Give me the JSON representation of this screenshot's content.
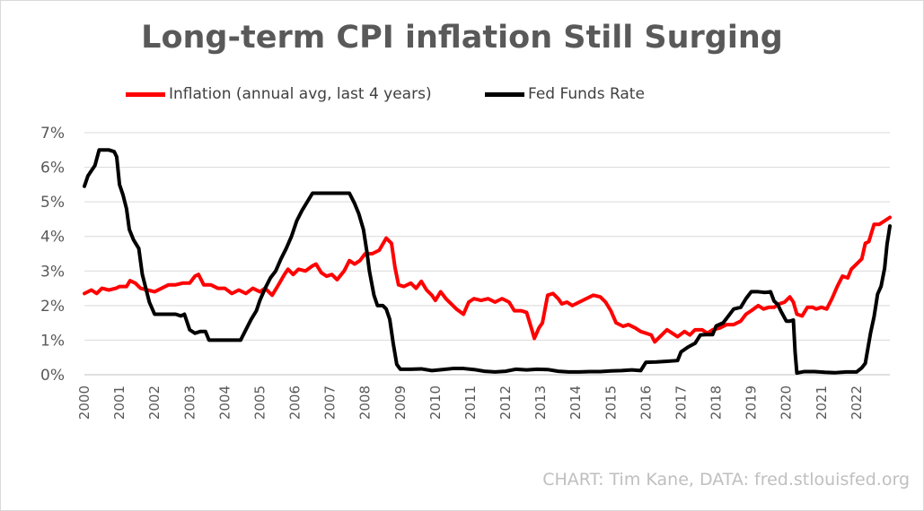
{
  "chart_data": {
    "type": "line",
    "title": "Long-term CPI inflation Still Surging",
    "credit": "CHART: Tim Kane, DATA: fred.stlouisfed.org",
    "legend_position": "top",
    "grid": true,
    "xlim": [
      2000,
      2022.95
    ],
    "ylim": [
      0,
      7
    ],
    "y_unit": "%",
    "x_ticks": [
      "2000",
      "2001",
      "2002",
      "2003",
      "2004",
      "2005",
      "2006",
      "2007",
      "2008",
      "2009",
      "2010",
      "2011",
      "2012",
      "2013",
      "2014",
      "2015",
      "2016",
      "2017",
      "2018",
      "2019",
      "2020",
      "2021",
      "2022"
    ],
    "y_ticks": [
      "0%",
      "1%",
      "2%",
      "3%",
      "4%",
      "5%",
      "6%",
      "7%"
    ],
    "series": [
      {
        "name": "Inflation (annual avg, last 4 years)",
        "color": "#ff0000",
        "points": [
          [
            2000.0,
            2.35
          ],
          [
            2000.2,
            2.45
          ],
          [
            2000.35,
            2.35
          ],
          [
            2000.5,
            2.5
          ],
          [
            2000.7,
            2.45
          ],
          [
            2000.9,
            2.5
          ],
          [
            2001.0,
            2.55
          ],
          [
            2001.2,
            2.55
          ],
          [
            2001.3,
            2.72
          ],
          [
            2001.45,
            2.65
          ],
          [
            2001.6,
            2.5
          ],
          [
            2001.8,
            2.45
          ],
          [
            2002.0,
            2.4
          ],
          [
            2002.2,
            2.5
          ],
          [
            2002.4,
            2.6
          ],
          [
            2002.6,
            2.6
          ],
          [
            2002.8,
            2.65
          ],
          [
            2003.0,
            2.65
          ],
          [
            2003.15,
            2.85
          ],
          [
            2003.25,
            2.9
          ],
          [
            2003.4,
            2.6
          ],
          [
            2003.6,
            2.6
          ],
          [
            2003.8,
            2.5
          ],
          [
            2004.0,
            2.5
          ],
          [
            2004.2,
            2.35
          ],
          [
            2004.4,
            2.45
          ],
          [
            2004.6,
            2.35
          ],
          [
            2004.8,
            2.5
          ],
          [
            2005.0,
            2.4
          ],
          [
            2005.15,
            2.5
          ],
          [
            2005.35,
            2.3
          ],
          [
            2005.5,
            2.55
          ],
          [
            2005.7,
            2.9
          ],
          [
            2005.8,
            3.05
          ],
          [
            2005.95,
            2.9
          ],
          [
            2006.1,
            3.05
          ],
          [
            2006.3,
            3.0
          ],
          [
            2006.5,
            3.15
          ],
          [
            2006.6,
            3.2
          ],
          [
            2006.75,
            2.95
          ],
          [
            2006.9,
            2.85
          ],
          [
            2007.05,
            2.9
          ],
          [
            2007.2,
            2.75
          ],
          [
            2007.4,
            3.0
          ],
          [
            2007.55,
            3.3
          ],
          [
            2007.7,
            3.2
          ],
          [
            2007.85,
            3.3
          ],
          [
            2008.0,
            3.5
          ],
          [
            2008.2,
            3.5
          ],
          [
            2008.4,
            3.6
          ],
          [
            2008.6,
            3.95
          ],
          [
            2008.75,
            3.8
          ],
          [
            2008.85,
            3.1
          ],
          [
            2008.95,
            2.6
          ],
          [
            2009.1,
            2.55
          ],
          [
            2009.3,
            2.65
          ],
          [
            2009.45,
            2.5
          ],
          [
            2009.6,
            2.7
          ],
          [
            2009.75,
            2.45
          ],
          [
            2009.9,
            2.3
          ],
          [
            2010.0,
            2.15
          ],
          [
            2010.15,
            2.4
          ],
          [
            2010.3,
            2.2
          ],
          [
            2010.45,
            2.05
          ],
          [
            2010.6,
            1.9
          ],
          [
            2010.8,
            1.75
          ],
          [
            2010.95,
            2.1
          ],
          [
            2011.1,
            2.2
          ],
          [
            2011.3,
            2.15
          ],
          [
            2011.5,
            2.2
          ],
          [
            2011.7,
            2.1
          ],
          [
            2011.9,
            2.2
          ],
          [
            2012.1,
            2.1
          ],
          [
            2012.25,
            1.85
          ],
          [
            2012.45,
            1.85
          ],
          [
            2012.6,
            1.8
          ],
          [
            2012.75,
            1.3
          ],
          [
            2012.82,
            1.05
          ],
          [
            2012.95,
            1.35
          ],
          [
            2013.05,
            1.5
          ],
          [
            2013.2,
            2.3
          ],
          [
            2013.35,
            2.35
          ],
          [
            2013.5,
            2.2
          ],
          [
            2013.6,
            2.05
          ],
          [
            2013.75,
            2.1
          ],
          [
            2013.9,
            2.0
          ],
          [
            2014.1,
            2.1
          ],
          [
            2014.3,
            2.2
          ],
          [
            2014.5,
            2.3
          ],
          [
            2014.7,
            2.25
          ],
          [
            2014.85,
            2.1
          ],
          [
            2015.0,
            1.85
          ],
          [
            2015.15,
            1.5
          ],
          [
            2015.35,
            1.4
          ],
          [
            2015.5,
            1.45
          ],
          [
            2015.7,
            1.35
          ],
          [
            2015.85,
            1.25
          ],
          [
            2016.0,
            1.2
          ],
          [
            2016.15,
            1.15
          ],
          [
            2016.25,
            0.95
          ],
          [
            2016.4,
            1.1
          ],
          [
            2016.6,
            1.3
          ],
          [
            2016.75,
            1.2
          ],
          [
            2016.9,
            1.1
          ],
          [
            2017.1,
            1.25
          ],
          [
            2017.25,
            1.15
          ],
          [
            2017.4,
            1.3
          ],
          [
            2017.6,
            1.3
          ],
          [
            2017.75,
            1.2
          ],
          [
            2017.9,
            1.3
          ],
          [
            2018.1,
            1.35
          ],
          [
            2018.3,
            1.45
          ],
          [
            2018.5,
            1.45
          ],
          [
            2018.7,
            1.55
          ],
          [
            2018.85,
            1.75
          ],
          [
            2019.0,
            1.85
          ],
          [
            2019.2,
            2.0
          ],
          [
            2019.35,
            1.9
          ],
          [
            2019.5,
            1.95
          ],
          [
            2019.65,
            1.95
          ],
          [
            2019.8,
            2.05
          ],
          [
            2019.95,
            2.1
          ],
          [
            2020.1,
            2.25
          ],
          [
            2020.2,
            2.1
          ],
          [
            2020.3,
            1.75
          ],
          [
            2020.45,
            1.7
          ],
          [
            2020.6,
            1.95
          ],
          [
            2020.75,
            1.95
          ],
          [
            2020.85,
            1.9
          ],
          [
            2021.0,
            1.95
          ],
          [
            2021.15,
            1.9
          ],
          [
            2021.3,
            2.2
          ],
          [
            2021.45,
            2.55
          ],
          [
            2021.6,
            2.85
          ],
          [
            2021.75,
            2.8
          ],
          [
            2021.85,
            3.05
          ],
          [
            2022.0,
            3.2
          ],
          [
            2022.15,
            3.35
          ],
          [
            2022.25,
            3.8
          ],
          [
            2022.35,
            3.85
          ],
          [
            2022.5,
            4.35
          ],
          [
            2022.65,
            4.35
          ],
          [
            2022.8,
            4.45
          ],
          [
            2022.95,
            4.55
          ]
        ]
      },
      {
        "name": "Fed Funds Rate",
        "color": "#000000",
        "points": [
          [
            2000.0,
            5.45
          ],
          [
            2000.1,
            5.75
          ],
          [
            2000.2,
            5.9
          ],
          [
            2000.3,
            6.05
          ],
          [
            2000.42,
            6.5
          ],
          [
            2000.55,
            6.5
          ],
          [
            2000.7,
            6.5
          ],
          [
            2000.85,
            6.45
          ],
          [
            2000.92,
            6.3
          ],
          [
            2001.0,
            5.5
          ],
          [
            2001.1,
            5.2
          ],
          [
            2001.2,
            4.8
          ],
          [
            2001.28,
            4.2
          ],
          [
            2001.4,
            3.9
          ],
          [
            2001.55,
            3.65
          ],
          [
            2001.65,
            2.9
          ],
          [
            2001.75,
            2.5
          ],
          [
            2001.85,
            2.1
          ],
          [
            2002.0,
            1.75
          ],
          [
            2002.3,
            1.75
          ],
          [
            2002.6,
            1.75
          ],
          [
            2002.75,
            1.7
          ],
          [
            2002.85,
            1.75
          ],
          [
            2003.0,
            1.3
          ],
          [
            2003.15,
            1.2
          ],
          [
            2003.3,
            1.25
          ],
          [
            2003.45,
            1.25
          ],
          [
            2003.55,
            1.0
          ],
          [
            2003.7,
            1.0
          ],
          [
            2003.9,
            1.0
          ],
          [
            2004.2,
            1.0
          ],
          [
            2004.45,
            1.0
          ],
          [
            2004.6,
            1.3
          ],
          [
            2004.75,
            1.6
          ],
          [
            2004.9,
            1.85
          ],
          [
            2005.0,
            2.15
          ],
          [
            2005.15,
            2.5
          ],
          [
            2005.3,
            2.8
          ],
          [
            2005.45,
            3.0
          ],
          [
            2005.6,
            3.35
          ],
          [
            2005.75,
            3.65
          ],
          [
            2005.9,
            4.0
          ],
          [
            2006.05,
            4.45
          ],
          [
            2006.2,
            4.75
          ],
          [
            2006.35,
            5.0
          ],
          [
            2006.5,
            5.25
          ],
          [
            2006.7,
            5.25
          ],
          [
            2006.9,
            5.25
          ],
          [
            2007.1,
            5.25
          ],
          [
            2007.35,
            5.25
          ],
          [
            2007.55,
            5.25
          ],
          [
            2007.7,
            4.95
          ],
          [
            2007.82,
            4.65
          ],
          [
            2007.95,
            4.2
          ],
          [
            2008.05,
            3.55
          ],
          [
            2008.12,
            3.0
          ],
          [
            2008.25,
            2.3
          ],
          [
            2008.35,
            2.0
          ],
          [
            2008.5,
            2.0
          ],
          [
            2008.6,
            1.9
          ],
          [
            2008.7,
            1.6
          ],
          [
            2008.8,
            0.9
          ],
          [
            2008.9,
            0.3
          ],
          [
            2009.0,
            0.16
          ],
          [
            2009.3,
            0.16
          ],
          [
            2009.6,
            0.17
          ],
          [
            2009.9,
            0.12
          ],
          [
            2010.2,
            0.15
          ],
          [
            2010.5,
            0.18
          ],
          [
            2010.8,
            0.18
          ],
          [
            2011.1,
            0.15
          ],
          [
            2011.4,
            0.1
          ],
          [
            2011.7,
            0.08
          ],
          [
            2012.0,
            0.1
          ],
          [
            2012.3,
            0.16
          ],
          [
            2012.6,
            0.14
          ],
          [
            2012.9,
            0.16
          ],
          [
            2013.2,
            0.15
          ],
          [
            2013.5,
            0.1
          ],
          [
            2013.8,
            0.08
          ],
          [
            2014.1,
            0.08
          ],
          [
            2014.4,
            0.09
          ],
          [
            2014.7,
            0.09
          ],
          [
            2015.0,
            0.11
          ],
          [
            2015.3,
            0.12
          ],
          [
            2015.6,
            0.14
          ],
          [
            2015.85,
            0.12
          ],
          [
            2016.0,
            0.36
          ],
          [
            2016.3,
            0.37
          ],
          [
            2016.6,
            0.39
          ],
          [
            2016.9,
            0.41
          ],
          [
            2017.0,
            0.66
          ],
          [
            2017.2,
            0.8
          ],
          [
            2017.4,
            0.91
          ],
          [
            2017.55,
            1.15
          ],
          [
            2017.7,
            1.16
          ],
          [
            2017.9,
            1.16
          ],
          [
            2018.0,
            1.41
          ],
          [
            2018.2,
            1.5
          ],
          [
            2018.35,
            1.7
          ],
          [
            2018.5,
            1.9
          ],
          [
            2018.7,
            1.95
          ],
          [
            2018.85,
            2.2
          ],
          [
            2019.0,
            2.4
          ],
          [
            2019.2,
            2.4
          ],
          [
            2019.4,
            2.38
          ],
          [
            2019.55,
            2.4
          ],
          [
            2019.65,
            2.13
          ],
          [
            2019.75,
            2.04
          ],
          [
            2019.85,
            1.83
          ],
          [
            2020.0,
            1.55
          ],
          [
            2020.1,
            1.55
          ],
          [
            2020.2,
            1.58
          ],
          [
            2020.25,
            0.65
          ],
          [
            2020.3,
            0.05
          ],
          [
            2020.5,
            0.09
          ],
          [
            2020.8,
            0.09
          ],
          [
            2021.1,
            0.07
          ],
          [
            2021.4,
            0.06
          ],
          [
            2021.7,
            0.08
          ],
          [
            2022.0,
            0.08
          ],
          [
            2022.15,
            0.2
          ],
          [
            2022.25,
            0.33
          ],
          [
            2022.4,
            1.21
          ],
          [
            2022.5,
            1.68
          ],
          [
            2022.6,
            2.33
          ],
          [
            2022.7,
            2.56
          ],
          [
            2022.8,
            3.08
          ],
          [
            2022.87,
            3.78
          ],
          [
            2022.92,
            4.1
          ],
          [
            2022.95,
            4.3
          ]
        ]
      }
    ]
  }
}
